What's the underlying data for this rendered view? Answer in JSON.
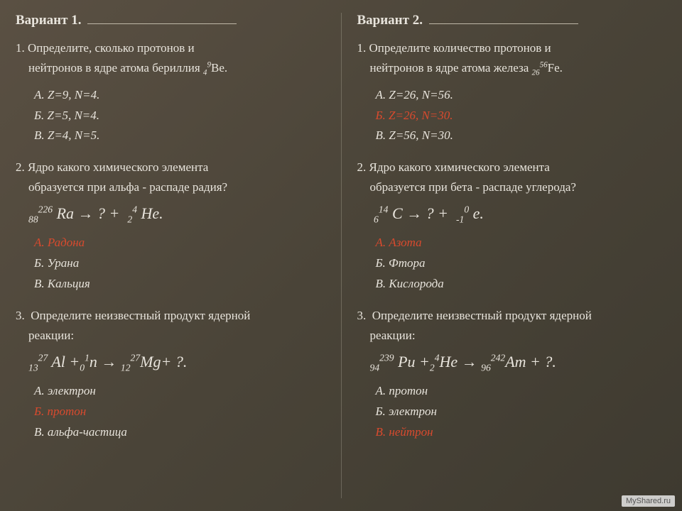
{
  "left": {
    "variant_label": "Вариант 1.",
    "q1": {
      "num": "1.",
      "text_line1": "Определите, сколько протонов и",
      "text_line2": "нейтронов в ядре атома бериллия ",
      "formula": {
        "z": "4",
        "a": "9",
        "sym": "Be"
      },
      "opts": [
        {
          "label": "А. Z=9, N=4.",
          "red": false
        },
        {
          "label": "Б. Z=5, N=4.",
          "red": false
        },
        {
          "label": "В. Z=4, N=5.",
          "red": false
        }
      ]
    },
    "q2": {
      "num": "2.",
      "text_line1": "Ядро какого химического элемента",
      "text_line2": "образуется при альфа - распаде радия?",
      "equation": {
        "l_z": "88",
        "l_a": "226",
        "l_sym": "Ra",
        "r_z": "2",
        "r_a": "4",
        "r_sym": "He"
      },
      "opts": [
        {
          "label": "А. Радона",
          "red": true
        },
        {
          "label": "Б. Урана",
          "red": false
        },
        {
          "label": "В. Кальция",
          "red": false
        }
      ]
    },
    "q3": {
      "num": "3.",
      "text_line1": "Определите неизвестный продукт ядерной",
      "text_line2": "реакции:",
      "equation_text": {
        "a_z": "13",
        "a_a": "27",
        "a_sym": "Al",
        "b_z": "0",
        "b_a": "1",
        "b_sym": "n",
        "c_z": "12",
        "c_a": "27",
        "c_sym": "Mg"
      },
      "opts": [
        {
          "label": "А.  электрон",
          "red": false
        },
        {
          "label": "Б. протон",
          "red": true
        },
        {
          "label": "В. альфа-частица",
          "red": false
        }
      ]
    }
  },
  "right": {
    "variant_label": "Вариант 2.",
    "q1": {
      "num": "1.",
      "text_line1": "Определите количество протонов и",
      "text_line2": "нейтронов в ядре атома железа ",
      "formula": {
        "z": "26",
        "a": "56",
        "sym": "Fe"
      },
      "opts": [
        {
          "label": "А. Z=26, N=56.",
          "red": false
        },
        {
          "label": "Б. Z=26, N=30.",
          "red": true
        },
        {
          "label": "В. Z=56, N=30.",
          "red": false
        }
      ]
    },
    "q2": {
      "num": "2.",
      "text_line1": "Ядро какого химического элемента",
      "text_line2": "образуется при бета - распаде углерода?",
      "equation": {
        "l_z": "6",
        "l_a": "14",
        "l_sym": "C",
        "r_z": "-1",
        "r_a": "0",
        "r_sym": "e"
      },
      "opts": [
        {
          "label": "А. Азота",
          "red": true
        },
        {
          "label": "Б. Фтора",
          "red": false
        },
        {
          "label": "В. Кислорода",
          "red": false
        }
      ]
    },
    "q3": {
      "num": "3.",
      "text_line1": "Определите неизвестный продукт ядерной",
      "text_line2": "реакции:",
      "equation_text": {
        "a_z": "94",
        "a_a": "239",
        "a_sym": "Pu",
        "b_z": "2",
        "b_a": "4",
        "b_sym": "He",
        "c_z": "96",
        "c_a": "242",
        "c_sym": "Am"
      },
      "opts": [
        {
          "label": "А.  протон",
          "red": false
        },
        {
          "label": "Б. электрон",
          "red": false
        },
        {
          "label": "В. нейтрон",
          "red": true
        }
      ]
    }
  },
  "watermark": "MyShared.ru"
}
